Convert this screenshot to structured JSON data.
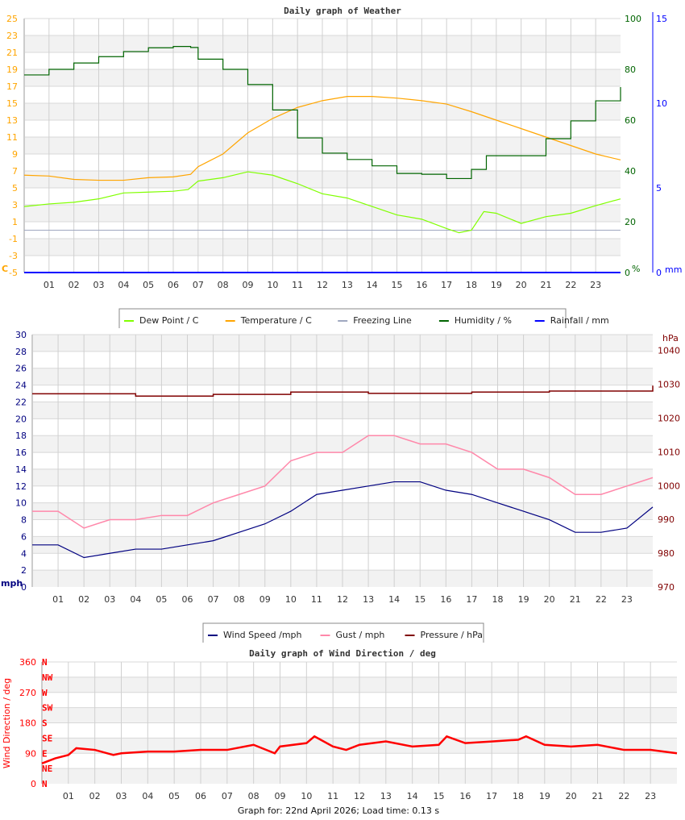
{
  "footer": "Graph for: 22nd April 2026; Load time: 0.13 s",
  "hour_labels": [
    "01",
    "02",
    "03",
    "04",
    "05",
    "06",
    "07",
    "08",
    "09",
    "10",
    "11",
    "12",
    "13",
    "14",
    "15",
    "16",
    "17",
    "18",
    "19",
    "20",
    "21",
    "22",
    "23"
  ],
  "chart_data": [
    {
      "type": "line",
      "title": "Daily graph of Weather",
      "x_range": [
        0,
        24
      ],
      "grid": true,
      "legend_placement": "bottom",
      "axes": {
        "left": {
          "unit": "C",
          "range": [
            -5,
            25
          ],
          "ticks": [
            "25",
            "23",
            "21",
            "19",
            "17",
            "15",
            "13",
            "11",
            "9",
            "7",
            "5",
            "3",
            "1",
            "-1",
            "-3",
            "-5"
          ],
          "color": "#ffa500"
        },
        "right_humidity": {
          "unit": "%",
          "range": [
            0,
            100
          ],
          "ticks": [
            "100",
            "80",
            "60",
            "40",
            "20",
            "0"
          ],
          "color": "#006400"
        },
        "right_rain": {
          "unit": "mm",
          "range": [
            0,
            15
          ],
          "ticks": [
            "15",
            "10",
            "5",
            "0"
          ],
          "color": "#0000ff"
        }
      },
      "series": [
        {
          "name": "Dew Point / C",
          "color": "#80ff00",
          "axis": "left",
          "x": [
            0,
            1,
            2,
            3,
            4,
            5,
            6,
            6.6,
            7,
            8,
            9,
            10,
            11,
            12,
            13,
            14,
            15,
            16,
            17,
            17.5,
            18,
            18.5,
            19,
            20,
            21,
            22,
            23,
            24
          ],
          "y": [
            2.8,
            3.1,
            3.3,
            3.7,
            4.4,
            4.5,
            4.6,
            4.8,
            5.8,
            6.2,
            6.9,
            6.5,
            5.5,
            4.3,
            3.8,
            2.8,
            1.8,
            1.3,
            0.2,
            -0.3,
            0.0,
            2.2,
            2.0,
            0.8,
            1.6,
            2.0,
            2.9,
            3.7
          ]
        },
        {
          "name": "Temperature / C",
          "color": "#ffa500",
          "axis": "left",
          "x": [
            0,
            1,
            2,
            3,
            4,
            5,
            6,
            6.7,
            7,
            8,
            9,
            10,
            11,
            12,
            13,
            14,
            15,
            16,
            17,
            18,
            19,
            20,
            21,
            22,
            23,
            24
          ],
          "y": [
            6.5,
            6.4,
            6.0,
            5.9,
            5.9,
            6.2,
            6.3,
            6.6,
            7.5,
            9.0,
            11.5,
            13.2,
            14.5,
            15.3,
            15.8,
            15.8,
            15.6,
            15.3,
            14.9,
            14.0,
            13.0,
            12.0,
            11.0,
            10.0,
            9.0,
            8.3
          ]
        },
        {
          "name": "Freezing Line",
          "color": "#a0a8c0",
          "axis": "left",
          "x": [
            0,
            24
          ],
          "y": [
            0,
            0
          ]
        },
        {
          "name": "Humidity / %",
          "color": "#006400",
          "axis": "right_humidity",
          "x": [
            0,
            1,
            2,
            3,
            4,
            5,
            6,
            6.7,
            7,
            8,
            9,
            10,
            11,
            12,
            13,
            14,
            15,
            16,
            17,
            17.8,
            18,
            18.6,
            20,
            21,
            22,
            23,
            24
          ],
          "y": [
            77.8,
            80,
            82.5,
            85,
            87,
            88.5,
            89,
            88.6,
            84,
            80,
            74,
            64,
            53,
            47,
            44.5,
            42,
            39,
            38.7,
            37,
            37,
            40.6,
            46,
            46,
            52.7,
            59.7,
            67.6,
            73
          ]
        },
        {
          "name": "Rainfall / mm",
          "color": "#0000ff",
          "axis": "right_rain",
          "x": [
            0,
            24
          ],
          "y": [
            0,
            0
          ]
        }
      ]
    },
    {
      "type": "line",
      "title": "",
      "x_range": [
        0,
        24
      ],
      "grid": true,
      "legend_placement": "bottom",
      "axes": {
        "left": {
          "unit": "mph",
          "range": [
            0,
            30
          ],
          "ticks": [
            "30",
            "28",
            "26",
            "24",
            "22",
            "20",
            "18",
            "16",
            "14",
            "12",
            "10",
            "8",
            "6",
            "4",
            "2",
            "0"
          ],
          "color": "#000080"
        },
        "right": {
          "unit": "hPa",
          "range": [
            970,
            1044.7
          ],
          "ticks": [
            "1040",
            "1030",
            "1020",
            "1010",
            "1000",
            "990",
            "980",
            "970"
          ],
          "color": "#800000"
        }
      },
      "series": [
        {
          "name": "Wind Speed /mph",
          "color": "#000080",
          "axis": "left",
          "x": [
            0,
            1,
            2,
            3,
            4,
            5,
            6,
            7,
            8,
            9,
            10,
            11,
            12,
            13,
            14,
            15,
            16,
            17,
            18,
            19,
            20,
            21,
            22,
            23,
            24
          ],
          "y": [
            5,
            5,
            3.5,
            4,
            4.5,
            4.5,
            5,
            5.5,
            6.5,
            7.5,
            9,
            11,
            11.5,
            12,
            12.5,
            12.5,
            11.5,
            11,
            10,
            9,
            8,
            6.5,
            6.5,
            7,
            9.5
          ]
        },
        {
          "name": "Gust / mph",
          "color": "#ff88aa",
          "axis": "left",
          "x": [
            0,
            1,
            2,
            3,
            4,
            5,
            6,
            7,
            8,
            9,
            10,
            11,
            12,
            13,
            14,
            15,
            16,
            17,
            18,
            19,
            20,
            21,
            22,
            23,
            24
          ],
          "y": [
            9,
            9,
            7,
            8,
            8,
            8.5,
            8.5,
            10,
            11,
            12,
            15,
            16,
            16,
            18,
            18,
            17,
            17,
            16,
            14,
            14,
            13,
            11,
            11,
            12,
            13
          ]
        },
        {
          "name": "Pressure / hPa",
          "color": "#800000",
          "axis": "right",
          "x": [
            0,
            4,
            7,
            10,
            13,
            17,
            20,
            24
          ],
          "y": [
            1027.2,
            1026.5,
            1027,
            1027.7,
            1027.3,
            1027.7,
            1028,
            1029.6
          ]
        }
      ]
    },
    {
      "type": "scatter",
      "title": "Daily graph of Wind Direction / deg",
      "x_range": [
        0,
        24
      ],
      "grid": true,
      "axes": {
        "left": {
          "label": "Wind Direction / deg",
          "range": [
            0,
            360
          ],
          "ticks": [
            "360",
            "270",
            "180",
            "90",
            "0"
          ],
          "color": "#ff0000"
        },
        "compass": [
          "N",
          "NW",
          "W",
          "SW",
          "S",
          "SE",
          "E",
          "NE",
          "N"
        ]
      },
      "series": [
        {
          "color": "#ff0000",
          "x": [
            0,
            0.5,
            1,
            1.3,
            2,
            2.7,
            3,
            4,
            5,
            6,
            7,
            8,
            8.8,
            9,
            10,
            10.3,
            11,
            11.5,
            12,
            13,
            14,
            15,
            15.3,
            16,
            17,
            18,
            18.3,
            19,
            20,
            21,
            22,
            23,
            24
          ],
          "y": [
            60,
            75,
            85,
            105,
            100,
            85,
            90,
            95,
            95,
            100,
            100,
            115,
            90,
            110,
            120,
            140,
            110,
            100,
            115,
            125,
            110,
            115,
            140,
            120,
            125,
            130,
            140,
            115,
            110,
            115,
            100,
            100,
            90
          ]
        }
      ]
    }
  ]
}
